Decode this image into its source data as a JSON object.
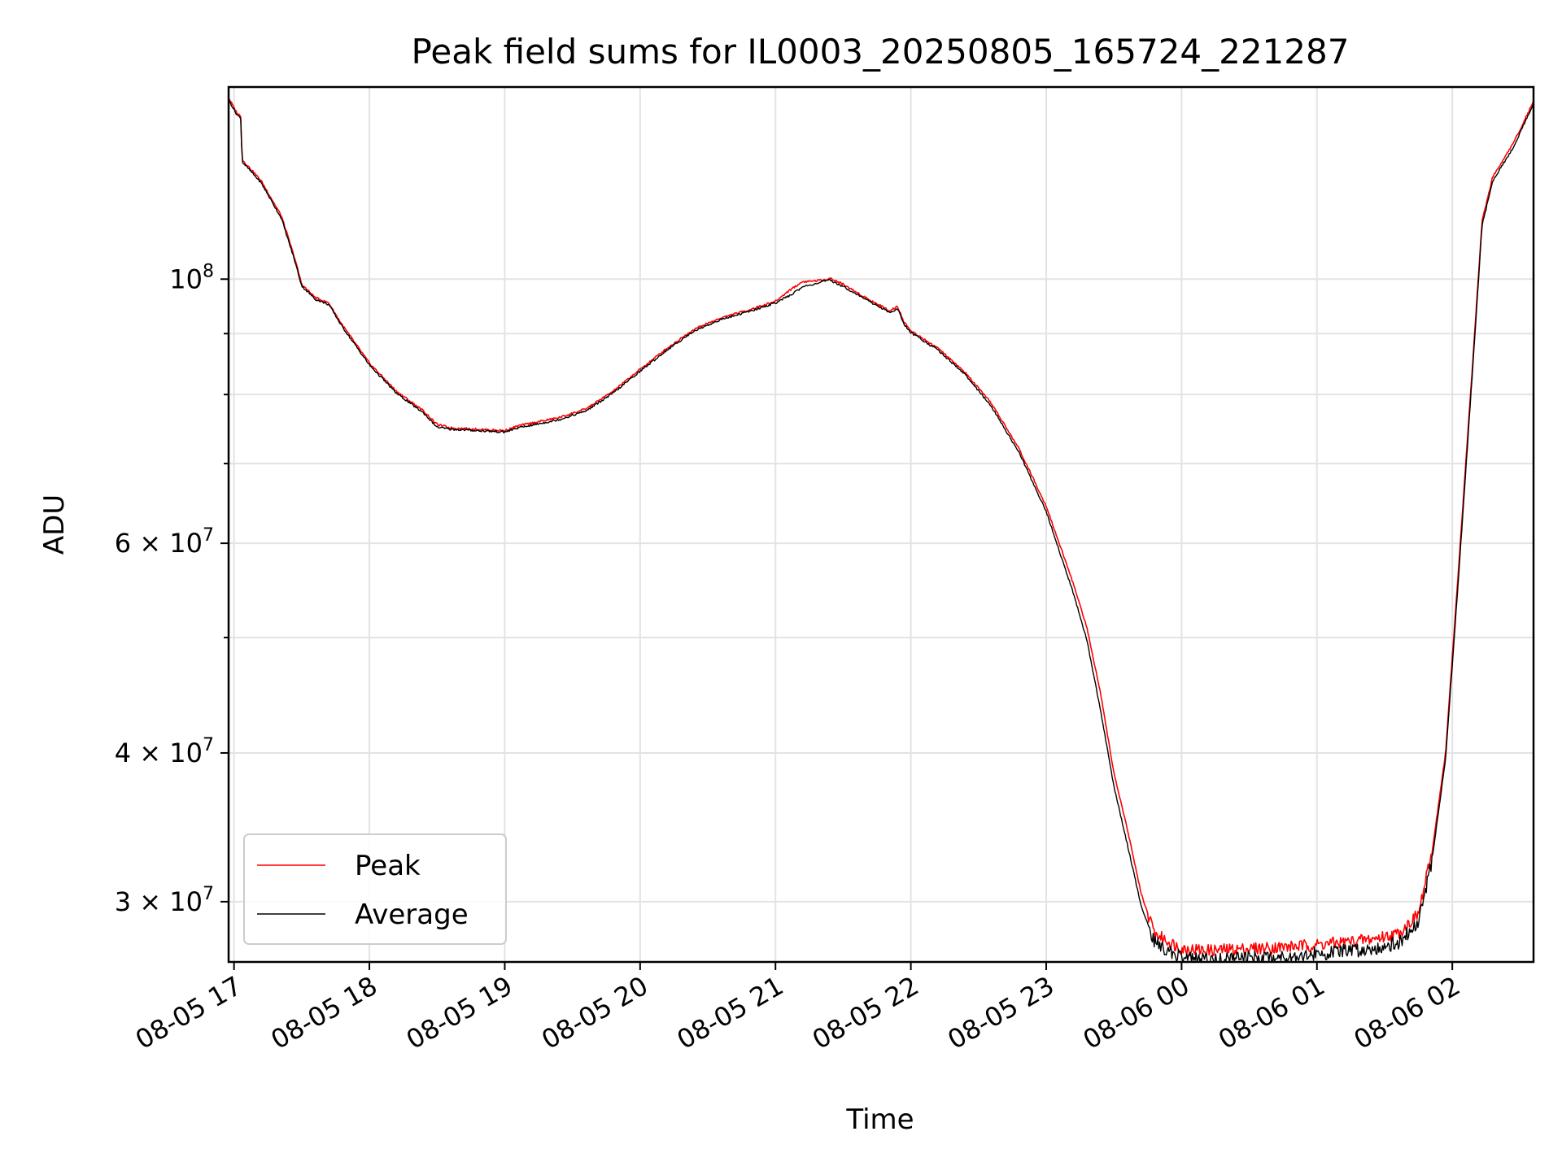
{
  "chart_data": {
    "type": "line",
    "title": "Peak field sums for IL0003_20250805_165724_221287",
    "xlabel": "Time",
    "ylabel": "ADU",
    "x_unit": "hours since 2025-08-05 17:00",
    "x_range": [
      -0.04,
      9.6
    ],
    "x_ticks": [
      {
        "label": "08-05 17",
        "value": 0
      },
      {
        "label": "08-05 18",
        "value": 1
      },
      {
        "label": "08-05 19",
        "value": 2
      },
      {
        "label": "08-05 20",
        "value": 3
      },
      {
        "label": "08-05 21",
        "value": 4
      },
      {
        "label": "08-05 22",
        "value": 5
      },
      {
        "label": "08-05 23",
        "value": 6
      },
      {
        "label": "08-06 00",
        "value": 7
      },
      {
        "label": "08-06 01",
        "value": 8
      },
      {
        "label": "08-06 02",
        "value": 9
      }
    ],
    "y_scale": "log",
    "y_range": [
      26700000,
      145000000
    ],
    "y_major_ticks": [
      {
        "label": "10",
        "sup": "8",
        "value": 100000000
      },
      {
        "label": "6 × 10",
        "sup": "7",
        "value": 60000000
      },
      {
        "label": "4 × 10",
        "sup": "7",
        "value": 40000000
      },
      {
        "label": "3 × 10",
        "sup": "7",
        "value": 30000000
      }
    ],
    "y_minor_ticks": [
      90000000,
      80000000,
      70000000,
      50000000
    ],
    "grid": true,
    "legend_position": "lower-left",
    "series": [
      {
        "name": "Peak",
        "color": "#ff0000",
        "points": [
          [
            -0.04,
            142000000
          ],
          [
            0.02,
            138000000
          ],
          [
            0.05,
            137000000
          ],
          [
            0.06,
            126000000
          ],
          [
            0.2,
            121000000
          ],
          [
            0.35,
            113000000
          ],
          [
            0.45,
            104000000
          ],
          [
            0.5,
            99000000
          ],
          [
            0.6,
            96500000
          ],
          [
            0.7,
            95500000
          ],
          [
            0.8,
            91500000
          ],
          [
            1.0,
            85000000
          ],
          [
            1.2,
            80500000
          ],
          [
            1.4,
            77500000
          ],
          [
            1.5,
            75500000
          ],
          [
            1.6,
            75000000
          ],
          [
            2.0,
            74600000
          ],
          [
            2.1,
            75300000
          ],
          [
            2.4,
            76500000
          ],
          [
            2.6,
            77800000
          ],
          [
            2.8,
            80500000
          ],
          [
            3.0,
            84000000
          ],
          [
            3.2,
            87500000
          ],
          [
            3.4,
            90800000
          ],
          [
            3.6,
            92800000
          ],
          [
            3.8,
            94200000
          ],
          [
            4.0,
            95800000
          ],
          [
            4.1,
            97800000
          ],
          [
            4.2,
            99500000
          ],
          [
            4.35,
            99800000
          ],
          [
            4.4,
            100200000
          ],
          [
            4.5,
            99000000
          ],
          [
            4.7,
            96000000
          ],
          [
            4.85,
            94000000
          ],
          [
            4.9,
            95000000
          ],
          [
            4.95,
            92000000
          ],
          [
            5.0,
            90500000
          ],
          [
            5.2,
            87500000
          ],
          [
            5.4,
            83500000
          ],
          [
            5.6,
            78500000
          ],
          [
            5.8,
            72000000
          ],
          [
            6.0,
            64500000
          ],
          [
            6.2,
            55500000
          ],
          [
            6.3,
            51000000
          ],
          [
            6.4,
            45000000
          ],
          [
            6.5,
            38500000
          ],
          [
            6.6,
            34500000
          ],
          [
            6.7,
            30500000
          ],
          [
            6.8,
            28200000
          ],
          [
            7.0,
            27400000
          ],
          [
            7.2,
            27300000
          ],
          [
            7.5,
            27400000
          ],
          [
            7.8,
            27500000
          ],
          [
            8.0,
            27600000
          ],
          [
            8.4,
            27900000
          ],
          [
            8.6,
            28200000
          ],
          [
            8.75,
            29300000
          ],
          [
            8.85,
            33000000
          ],
          [
            8.95,
            40000000
          ],
          [
            9.05,
            58000000
          ],
          [
            9.15,
            85000000
          ],
          [
            9.22,
            112000000
          ],
          [
            9.3,
            122000000
          ],
          [
            9.45,
            130000000
          ],
          [
            9.6,
            141000000
          ]
        ]
      },
      {
        "name": "Average",
        "color": "#000000",
        "points": [
          [
            -0.04,
            141500000
          ],
          [
            0.02,
            137500000
          ],
          [
            0.05,
            136500000
          ],
          [
            0.06,
            125500000
          ],
          [
            0.2,
            120500000
          ],
          [
            0.35,
            112500000
          ],
          [
            0.45,
            103500000
          ],
          [
            0.5,
            98700000
          ],
          [
            0.6,
            96200000
          ],
          [
            0.7,
            95200000
          ],
          [
            0.8,
            91200000
          ],
          [
            1.0,
            84700000
          ],
          [
            1.2,
            80200000
          ],
          [
            1.4,
            77200000
          ],
          [
            1.5,
            75100000
          ],
          [
            1.6,
            74800000
          ],
          [
            2.0,
            74400000
          ],
          [
            2.1,
            75000000
          ],
          [
            2.4,
            76200000
          ],
          [
            2.6,
            77500000
          ],
          [
            2.8,
            80200000
          ],
          [
            3.0,
            83700000
          ],
          [
            3.2,
            87200000
          ],
          [
            3.4,
            90500000
          ],
          [
            3.6,
            92500000
          ],
          [
            3.8,
            93900000
          ],
          [
            4.0,
            95500000
          ],
          [
            4.1,
            96800000
          ],
          [
            4.2,
            98500000
          ],
          [
            4.35,
            99500000
          ],
          [
            4.4,
            99800000
          ],
          [
            4.5,
            98600000
          ],
          [
            4.7,
            95700000
          ],
          [
            4.85,
            93700000
          ],
          [
            4.9,
            94500000
          ],
          [
            4.95,
            91700000
          ],
          [
            5.0,
            90200000
          ],
          [
            5.2,
            87200000
          ],
          [
            5.4,
            83200000
          ],
          [
            5.6,
            78000000
          ],
          [
            5.8,
            71500000
          ],
          [
            6.0,
            63800000
          ],
          [
            6.2,
            54500000
          ],
          [
            6.3,
            49800000
          ],
          [
            6.4,
            43500000
          ],
          [
            6.5,
            37500000
          ],
          [
            6.6,
            33500000
          ],
          [
            6.7,
            29800000
          ],
          [
            6.8,
            27700000
          ],
          [
            7.0,
            26900000
          ],
          [
            7.2,
            26800000
          ],
          [
            7.5,
            26900000
          ],
          [
            7.8,
            27000000
          ],
          [
            8.0,
            27100000
          ],
          [
            8.4,
            27400000
          ],
          [
            8.6,
            27700000
          ],
          [
            8.75,
            28800000
          ],
          [
            8.85,
            32500000
          ],
          [
            8.95,
            39500000
          ],
          [
            9.05,
            57000000
          ],
          [
            9.15,
            84000000
          ],
          [
            9.22,
            111000000
          ],
          [
            9.3,
            121000000
          ],
          [
            9.45,
            129000000
          ],
          [
            9.6,
            140500000
          ]
        ]
      }
    ]
  }
}
